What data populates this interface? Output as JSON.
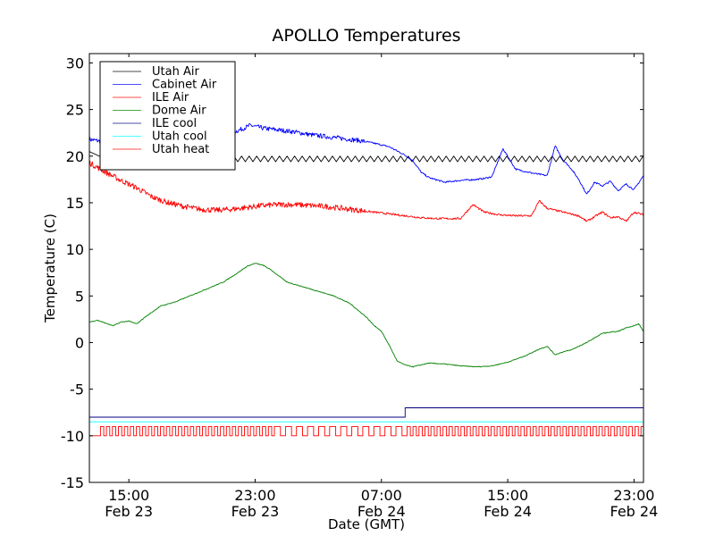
{
  "chart_data": {
    "type": "line",
    "title": "APOLLO Temperatures",
    "xlabel": "Date (GMT)",
    "ylabel": "Temperature (C)",
    "xlim_hours": [
      12.5,
      47.6
    ],
    "x_unit": "hours since Feb 23 00:00 GMT",
    "ylim": [
      -15,
      31
    ],
    "yticks": [
      -15,
      -10,
      -5,
      0,
      5,
      10,
      15,
      20,
      25,
      30
    ],
    "ytick_labels": [
      "-15",
      "-10",
      "-5",
      "0",
      "5",
      "10",
      "15",
      "20",
      "25",
      "30"
    ],
    "xticks": [
      {
        "hour": 15,
        "time": "15:00",
        "date": "Feb 23"
      },
      {
        "hour": 23,
        "time": "23:00",
        "date": "Feb 23"
      },
      {
        "hour": 31,
        "time": "07:00",
        "date": "Feb 24"
      },
      {
        "hour": 39,
        "time": "15:00",
        "date": "Feb 24"
      },
      {
        "hour": 47,
        "time": "23:00",
        "date": "Feb 24"
      }
    ],
    "grid": false,
    "legend_position": "top-left",
    "series": [
      {
        "name": "Utah Air",
        "color": "#000000",
        "style": "sawtooth",
        "baseline": 19.7,
        "amplitude": 0.6,
        "period_hours": 0.48,
        "x": [
          12.5,
          13.5,
          47.6
        ],
        "y": [
          20.5,
          19.7,
          19.7
        ]
      },
      {
        "name": "Cabinet Air",
        "color": "#0000ff",
        "noise": 0.25,
        "x": [
          12.5,
          13.2,
          14.0,
          15.0,
          16.0,
          17.0,
          18.0,
          19.0,
          20.0,
          21.0,
          22.0,
          22.7,
          23.5,
          24.5,
          25.5,
          26.5,
          27.5,
          28.5,
          29.5,
          30.5,
          31.5,
          32.5,
          33.0,
          33.5,
          34.0,
          35.0,
          36.0,
          37.0,
          37.5,
          38.0,
          38.7,
          39.5,
          40.5,
          41.5,
          42.0,
          42.5,
          43.0,
          43.5,
          44.0,
          44.5,
          45.0,
          45.5,
          46.0,
          46.5,
          47.0,
          47.6
        ],
        "y": [
          21.8,
          21.6,
          21.3,
          21.0,
          21.0,
          21.2,
          21.5,
          21.6,
          21.8,
          22.2,
          22.8,
          23.3,
          23.0,
          22.8,
          22.6,
          22.3,
          22.1,
          21.9,
          21.7,
          21.4,
          21.0,
          20.1,
          19.5,
          18.3,
          17.7,
          17.2,
          17.4,
          17.5,
          17.6,
          17.8,
          20.8,
          18.6,
          18.2,
          17.9,
          21.1,
          19.6,
          18.7,
          17.5,
          15.9,
          17.2,
          16.8,
          17.3,
          16.3,
          17.0,
          16.4,
          17.9
        ]
      },
      {
        "name": "ILE Air",
        "color": "#ff0000",
        "noise": 0.3,
        "x": [
          12.5,
          13.5,
          14.5,
          15.5,
          16.5,
          17.5,
          18.5,
          19.5,
          20.5,
          21.5,
          22.5,
          23.5,
          24.5,
          25.5,
          26.5,
          27.5,
          28.5,
          29.5,
          30.5,
          31.5,
          32.5,
          33.5,
          34.5,
          35.5,
          36.0,
          36.8,
          37.5,
          38.5,
          39.5,
          40.5,
          41.0,
          41.5,
          42.5,
          43.5,
          44.0,
          44.5,
          45.0,
          45.5,
          46.0,
          46.5,
          47.0,
          47.6
        ],
        "y": [
          19.3,
          18.3,
          17.4,
          16.6,
          15.6,
          15.0,
          14.6,
          14.3,
          14.2,
          14.3,
          14.5,
          14.7,
          14.8,
          14.8,
          14.7,
          14.6,
          14.4,
          14.2,
          14.0,
          13.8,
          13.6,
          13.4,
          13.3,
          13.3,
          13.3,
          14.8,
          14.0,
          13.7,
          13.6,
          13.6,
          15.2,
          14.4,
          14.0,
          13.6,
          13.0,
          13.5,
          14.0,
          13.4,
          13.5,
          13.0,
          14.0,
          13.7
        ]
      },
      {
        "name": "Dome Air",
        "color": "#008000",
        "noise": 0.12,
        "x": [
          12.5,
          13.0,
          13.5,
          14.0,
          14.5,
          15.0,
          15.5,
          16.0,
          17.0,
          18.0,
          19.0,
          20.0,
          21.0,
          22.0,
          22.5,
          23.0,
          23.5,
          24.0,
          25.0,
          26.0,
          27.0,
          28.0,
          29.0,
          30.0,
          30.5,
          31.0,
          31.5,
          32.0,
          32.5,
          33.0,
          34.0,
          35.0,
          36.0,
          37.0,
          38.0,
          39.0,
          40.0,
          41.0,
          41.5,
          42.0,
          42.5,
          43.0,
          44.0,
          45.0,
          46.0,
          46.5,
          47.0,
          47.3,
          47.6
        ],
        "y": [
          2.2,
          2.4,
          2.1,
          1.8,
          2.2,
          2.3,
          2.0,
          2.7,
          3.9,
          4.4,
          5.1,
          5.8,
          6.5,
          7.6,
          8.2,
          8.5,
          8.3,
          7.8,
          6.5,
          6.0,
          5.5,
          5.0,
          4.2,
          2.8,
          1.9,
          1.2,
          -0.3,
          -2.0,
          -2.4,
          -2.6,
          -2.2,
          -2.3,
          -2.5,
          -2.6,
          -2.5,
          -2.1,
          -1.5,
          -0.7,
          -0.4,
          -1.3,
          -1.0,
          -0.8,
          0.0,
          1.0,
          1.2,
          1.6,
          1.8,
          2.0,
          1.2
        ]
      },
      {
        "name": "ILE cool",
        "color": "#000080",
        "x": [
          12.5,
          32.5,
          32.5,
          47.6
        ],
        "y": [
          -8.0,
          -8.0,
          -7.0,
          -7.0
        ]
      },
      {
        "name": "Utah cool",
        "color": "#00ffff",
        "x": [
          12.5,
          47.6
        ],
        "y": [
          -8.5,
          -8.5
        ]
      },
      {
        "name": "Utah heat",
        "color": "#ff0000",
        "style": "square-wave",
        "low": -10.0,
        "high": -9.0,
        "start_low_until_hour": 13.2,
        "x": [
          12.5,
          13.2,
          47.6
        ],
        "y": [
          -10.0,
          -9.0,
          -9.0
        ]
      }
    ]
  }
}
